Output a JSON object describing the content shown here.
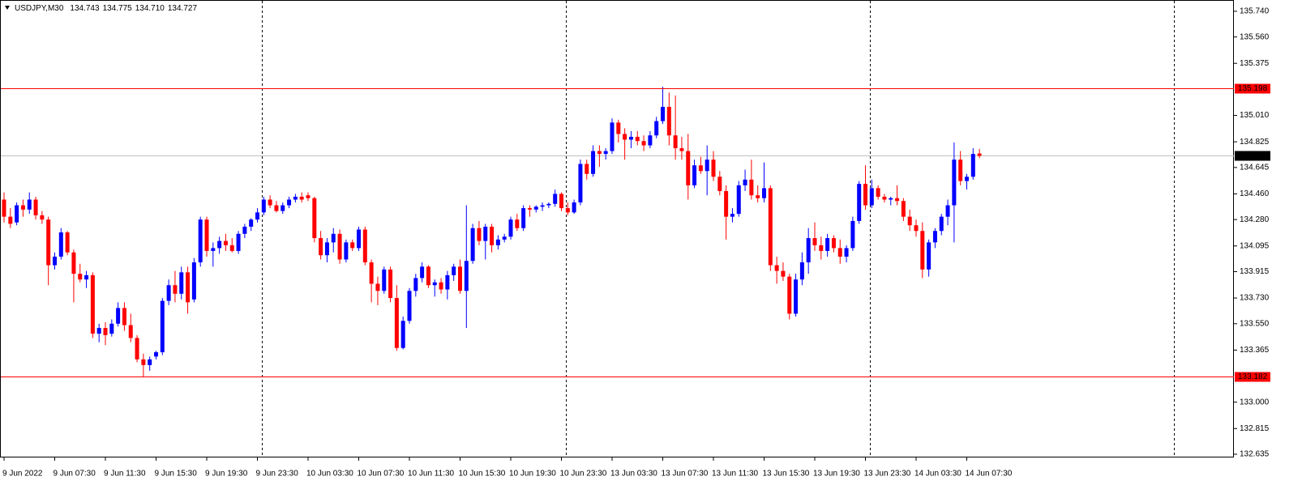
{
  "chart_data": {
    "type": "candlestick",
    "symbol": "USDJPY,M30",
    "title_values": [
      "134.743",
      "134.775",
      "134.710",
      "134.727"
    ],
    "categories": [
      "9 Jun 2022",
      null,
      null,
      null,
      null,
      null,
      null,
      null,
      "9 Jun 07:30",
      null,
      null,
      null,
      null,
      null,
      null,
      null,
      "9 Jun 11:30",
      null,
      null,
      null,
      null,
      null,
      null,
      null,
      "9 Jun 15:30",
      null,
      null,
      null,
      null,
      null,
      null,
      null,
      "9 Jun 19:30",
      null,
      null,
      null,
      null,
      null,
      null,
      null,
      "9 Jun 23:30",
      null,
      null,
      null,
      null,
      null,
      null,
      null,
      "10 Jun 03:30",
      null,
      null,
      null,
      null,
      null,
      null,
      null,
      "10 Jun 07:30",
      null,
      null,
      null,
      null,
      null,
      null,
      null,
      "10 Jun 11:30",
      null,
      null,
      null,
      null,
      null,
      null,
      null,
      "10 Jun 15:30",
      null,
      null,
      null,
      null,
      null,
      null,
      null,
      "10 Jun 19:30",
      null,
      null,
      null,
      null,
      null,
      null,
      null,
      "10 Jun 23:30",
      null,
      null,
      null,
      null,
      null,
      null,
      null,
      "13 Jun 03:30",
      null,
      null,
      null,
      null,
      null,
      null,
      null,
      "13 Jun 07:30",
      null,
      null,
      null,
      null,
      null,
      null,
      null,
      "13 Jun 11:30",
      null,
      null,
      null,
      null,
      null,
      null,
      null,
      "13 Jun 15:30",
      null,
      null,
      null,
      null,
      null,
      null,
      null,
      "13 Jun 19:30",
      null,
      null,
      null,
      null,
      null,
      null,
      null,
      "13 Jun 23:30",
      null,
      null,
      null,
      null,
      null,
      null,
      null,
      "14 Jun 03:30",
      null,
      null,
      null,
      null,
      null,
      null,
      null,
      "14 Jun 07:30",
      null,
      null
    ],
    "ohlc": [
      [
        134.42,
        134.47,
        134.26,
        134.3
      ],
      [
        134.3,
        134.36,
        134.22,
        134.25
      ],
      [
        134.26,
        134.4,
        134.24,
        134.38
      ],
      [
        134.38,
        134.42,
        134.3,
        134.35
      ],
      [
        134.35,
        134.47,
        134.32,
        134.42
      ],
      [
        134.42,
        134.44,
        134.28,
        134.31
      ],
      [
        134.31,
        134.34,
        134.25,
        134.28
      ],
      [
        134.28,
        134.3,
        133.82,
        133.96
      ],
      [
        133.96,
        134.05,
        133.93,
        134.02
      ],
      [
        134.02,
        134.22,
        134.0,
        134.19
      ],
      [
        134.19,
        134.2,
        134.03,
        134.05
      ],
      [
        134.05,
        134.07,
        133.7,
        133.9
      ],
      [
        133.9,
        133.97,
        133.84,
        133.86
      ],
      [
        133.86,
        133.92,
        133.8,
        133.89
      ],
      [
        133.89,
        133.91,
        133.45,
        133.48
      ],
      [
        133.48,
        133.55,
        133.42,
        133.52
      ],
      [
        133.52,
        133.56,
        133.4,
        133.47
      ],
      [
        133.48,
        133.58,
        133.46,
        133.55
      ],
      [
        133.55,
        133.7,
        133.53,
        133.66
      ],
      [
        133.66,
        133.7,
        133.5,
        133.54
      ],
      [
        133.54,
        133.62,
        133.42,
        133.45
      ],
      [
        133.45,
        133.47,
        133.28,
        133.3
      ],
      [
        133.3,
        133.34,
        133.18,
        133.26
      ],
      [
        133.26,
        133.32,
        133.22,
        133.3
      ],
      [
        133.32,
        133.36,
        133.3,
        133.35
      ],
      [
        133.35,
        133.73,
        133.33,
        133.71
      ],
      [
        133.71,
        133.86,
        133.68,
        133.82
      ],
      [
        133.82,
        133.92,
        133.7,
        133.76
      ],
      [
        133.76,
        133.95,
        133.72,
        133.91
      ],
      [
        133.91,
        133.95,
        133.62,
        133.7
      ],
      [
        133.72,
        134.01,
        133.7,
        133.98
      ],
      [
        133.98,
        134.3,
        133.95,
        134.28
      ],
      [
        134.28,
        134.3,
        134.02,
        134.06
      ],
      [
        134.06,
        134.12,
        133.95,
        134.08
      ],
      [
        134.08,
        134.16,
        134.04,
        134.13
      ],
      [
        134.13,
        134.18,
        134.06,
        134.1
      ],
      [
        134.1,
        134.15,
        134.05,
        134.06
      ],
      [
        134.06,
        134.2,
        134.04,
        134.18
      ],
      [
        134.18,
        134.25,
        134.15,
        134.23
      ],
      [
        134.23,
        134.29,
        134.2,
        134.28
      ],
      [
        134.28,
        134.36,
        134.26,
        134.33
      ],
      [
        134.33,
        134.44,
        134.31,
        134.42
      ],
      [
        134.42,
        134.45,
        134.36,
        134.38
      ],
      [
        134.38,
        134.41,
        134.33,
        134.34
      ],
      [
        134.34,
        134.4,
        134.32,
        134.38
      ],
      [
        134.38,
        134.44,
        134.36,
        134.42
      ],
      [
        134.42,
        134.46,
        134.4,
        134.44
      ],
      [
        134.44,
        134.47,
        134.4,
        134.42
      ],
      [
        134.45,
        134.47,
        134.41,
        134.43
      ],
      [
        134.43,
        134.44,
        134.12,
        134.15
      ],
      [
        134.15,
        134.2,
        134.0,
        134.03
      ],
      [
        134.03,
        134.15,
        133.98,
        134.12
      ],
      [
        134.12,
        134.22,
        134.05,
        134.18
      ],
      [
        134.18,
        134.21,
        133.97,
        134.0
      ],
      [
        134.0,
        134.14,
        133.98,
        134.12
      ],
      [
        134.12,
        134.14,
        134.06,
        134.08
      ],
      [
        134.08,
        134.23,
        134.06,
        134.21
      ],
      [
        134.21,
        134.23,
        133.96,
        133.98
      ],
      [
        133.98,
        134.0,
        133.7,
        133.83
      ],
      [
        133.83,
        133.88,
        133.68,
        133.78
      ],
      [
        133.78,
        133.95,
        133.76,
        133.93
      ],
      [
        133.93,
        133.95,
        133.7,
        133.73
      ],
      [
        133.73,
        133.82,
        133.36,
        133.38
      ],
      [
        133.38,
        133.6,
        133.37,
        133.57
      ],
      [
        133.57,
        133.8,
        133.55,
        133.78
      ],
      [
        133.78,
        133.9,
        133.74,
        133.87
      ],
      [
        133.87,
        133.98,
        133.84,
        133.95
      ],
      [
        133.95,
        133.96,
        133.8,
        133.82
      ],
      [
        133.82,
        133.86,
        133.74,
        133.84
      ],
      [
        133.84,
        133.87,
        133.76,
        133.79
      ],
      [
        133.79,
        133.92,
        133.72,
        133.89
      ],
      [
        133.89,
        133.97,
        133.85,
        133.95
      ],
      [
        133.95,
        134.0,
        133.76,
        133.78
      ],
      [
        133.78,
        134.38,
        133.52,
        133.99
      ],
      [
        133.99,
        134.25,
        133.97,
        134.22
      ],
      [
        134.22,
        134.27,
        134.1,
        134.13
      ],
      [
        134.13,
        134.25,
        134.0,
        134.23
      ],
      [
        134.23,
        134.25,
        134.05,
        134.1
      ],
      [
        134.1,
        134.17,
        134.07,
        134.14
      ],
      [
        134.14,
        134.18,
        134.12,
        134.16
      ],
      [
        134.16,
        134.3,
        134.14,
        134.28
      ],
      [
        134.28,
        134.32,
        134.2,
        134.22
      ],
      [
        134.22,
        134.38,
        134.2,
        134.36
      ],
      [
        134.36,
        134.38,
        134.3,
        134.35
      ],
      [
        134.35,
        134.38,
        134.33,
        134.37
      ],
      [
        134.37,
        134.4,
        134.34,
        134.38
      ],
      [
        134.38,
        134.4,
        134.36,
        134.39
      ],
      [
        134.39,
        134.49,
        134.37,
        134.46
      ],
      [
        134.46,
        134.47,
        134.34,
        134.36
      ],
      [
        134.36,
        134.4,
        134.31,
        134.33
      ],
      [
        134.33,
        134.42,
        134.32,
        134.4
      ],
      [
        134.4,
        134.7,
        134.38,
        134.67
      ],
      [
        134.67,
        134.7,
        134.56,
        134.6
      ],
      [
        134.6,
        134.8,
        134.58,
        134.76
      ],
      [
        134.76,
        134.8,
        134.65,
        134.74
      ],
      [
        134.74,
        134.78,
        134.7,
        134.76
      ],
      [
        134.76,
        134.99,
        134.74,
        134.96
      ],
      [
        134.96,
        134.98,
        134.82,
        134.88
      ],
      [
        134.88,
        134.92,
        134.7,
        134.84
      ],
      [
        134.84,
        134.9,
        134.78,
        134.86
      ],
      [
        134.86,
        134.9,
        134.8,
        134.83
      ],
      [
        134.83,
        134.87,
        134.76,
        134.8
      ],
      [
        134.8,
        134.9,
        134.78,
        134.87
      ],
      [
        134.87,
        135.0,
        134.85,
        134.97
      ],
      [
        134.97,
        135.21,
        134.95,
        135.07
      ],
      [
        135.07,
        135.17,
        134.8,
        134.87
      ],
      [
        134.87,
        135.15,
        134.7,
        134.78
      ],
      [
        134.78,
        134.86,
        134.7,
        134.76
      ],
      [
        134.76,
        134.88,
        134.42,
        134.52
      ],
      [
        134.52,
        134.7,
        134.5,
        134.66
      ],
      [
        134.66,
        134.72,
        134.6,
        134.62
      ],
      [
        134.62,
        134.8,
        134.45,
        134.7
      ],
      [
        134.7,
        134.76,
        134.55,
        134.58
      ],
      [
        134.58,
        134.62,
        134.45,
        134.48
      ],
      [
        134.48,
        134.52,
        134.14,
        134.3
      ],
      [
        134.3,
        134.36,
        134.26,
        134.32
      ],
      [
        134.32,
        134.55,
        134.3,
        134.52
      ],
      [
        134.52,
        134.63,
        134.48,
        134.56
      ],
      [
        134.56,
        134.7,
        134.42,
        134.45
      ],
      [
        134.45,
        134.52,
        134.4,
        134.43
      ],
      [
        134.43,
        134.68,
        134.4,
        134.5
      ],
      [
        134.5,
        134.52,
        133.92,
        133.96
      ],
      [
        133.96,
        134.02,
        133.83,
        133.92
      ],
      [
        133.92,
        133.98,
        133.85,
        133.88
      ],
      [
        133.88,
        133.9,
        133.58,
        133.62
      ],
      [
        133.62,
        133.9,
        133.6,
        133.86
      ],
      [
        133.86,
        134.05,
        133.82,
        133.98
      ],
      [
        133.98,
        134.22,
        133.9,
        134.15
      ],
      [
        134.15,
        134.26,
        134.06,
        134.1
      ],
      [
        134.1,
        134.16,
        134.0,
        134.06
      ],
      [
        134.06,
        134.18,
        134.02,
        134.15
      ],
      [
        134.15,
        134.17,
        134.05,
        134.08
      ],
      [
        134.08,
        134.14,
        133.97,
        134.02
      ],
      [
        134.02,
        134.1,
        133.98,
        134.08
      ],
      [
        134.08,
        134.3,
        134.06,
        134.27
      ],
      [
        134.27,
        134.55,
        134.25,
        134.53
      ],
      [
        134.53,
        134.66,
        134.35,
        134.38
      ],
      [
        134.38,
        134.56,
        134.36,
        134.5
      ],
      [
        134.5,
        134.52,
        134.42,
        134.44
      ],
      [
        134.44,
        134.46,
        134.4,
        134.42
      ],
      [
        134.42,
        134.44,
        134.38,
        134.43
      ],
      [
        134.43,
        134.52,
        134.38,
        134.41
      ],
      [
        134.41,
        134.43,
        134.27,
        134.3
      ],
      [
        134.3,
        134.35,
        134.2,
        134.24
      ],
      [
        134.24,
        134.28,
        134.16,
        134.2
      ],
      [
        134.2,
        134.26,
        133.87,
        133.93
      ],
      [
        133.93,
        134.14,
        133.88,
        134.12
      ],
      [
        134.12,
        134.22,
        134.08,
        134.2
      ],
      [
        134.2,
        134.32,
        134.17,
        134.3
      ],
      [
        134.3,
        134.42,
        134.24,
        134.38
      ],
      [
        134.38,
        134.82,
        134.12,
        134.7
      ],
      [
        134.7,
        134.76,
        134.52,
        134.55
      ],
      [
        134.55,
        134.6,
        134.49,
        134.58
      ],
      [
        134.58,
        134.78,
        134.56,
        134.74
      ],
      [
        134.743,
        134.775,
        134.71,
        134.727
      ]
    ],
    "up_color": "#0000ff",
    "down_color": "#ff0000",
    "ylim": [
      132.618,
      135.819
    ],
    "yticks": [
      {
        "value": 135.74,
        "label": "135.740"
      },
      {
        "value": 135.56,
        "label": "135.560"
      },
      135.375,
      {
        "value": 135.01,
        "label": "135.010"
      },
      134.825,
      134.645,
      {
        "value": 134.46,
        "label": "134.460"
      },
      {
        "value": 134.28,
        "label": "134.280"
      },
      134.095,
      133.915,
      {
        "value": 133.73,
        "label": "133.730"
      },
      {
        "value": 133.55,
        "label": "133.550"
      },
      133.365,
      {
        "value": 133,
        "label": "133.000"
      },
      132.815,
      132.635
    ],
    "hlines": [
      {
        "value": 135.198,
        "color": "#ff0000"
      },
      {
        "value": 133.182,
        "color": "#ff0000"
      }
    ],
    "last_price_color": "#c0c0c0"
  }
}
